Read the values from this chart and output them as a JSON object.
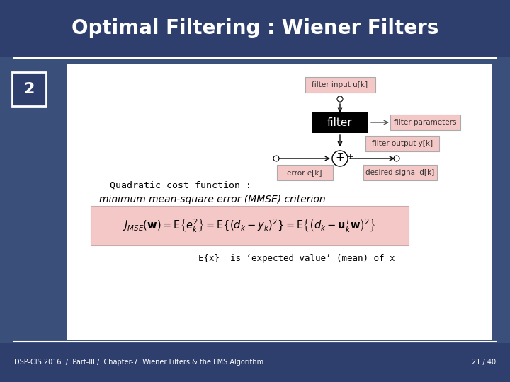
{
  "title": "Optimal Filtering : Wiener Filters",
  "title_color": "#ffffff",
  "header_bg": "#2e3f6e",
  "content_bg": "#f0f0f0",
  "slide_bg": "#3a4f7a",
  "footer_text": "DSP-CIS 2016  /  Part-III /  Chapter-7: Wiener Filters & the LMS Algorithm",
  "footer_right": "21 / 40",
  "slide_number": "2",
  "slide_number_color": "#ffffff",
  "slide_number_box_color": "#2e3f6e",
  "quadratic_text": "Quadratic cost function :",
  "mmse_text": "minimum mean-square error (MMSE) criterion",
  "expected_text": "E{x}  is ‘expected value’ (mean) of x",
  "formula_bg": "#f5c8c8",
  "diagram_box_color": "#000000",
  "diagram_box_text": "filter",
  "pink_label_bg": "#f5c8c8",
  "pink_label_border": "#aaaaaa"
}
